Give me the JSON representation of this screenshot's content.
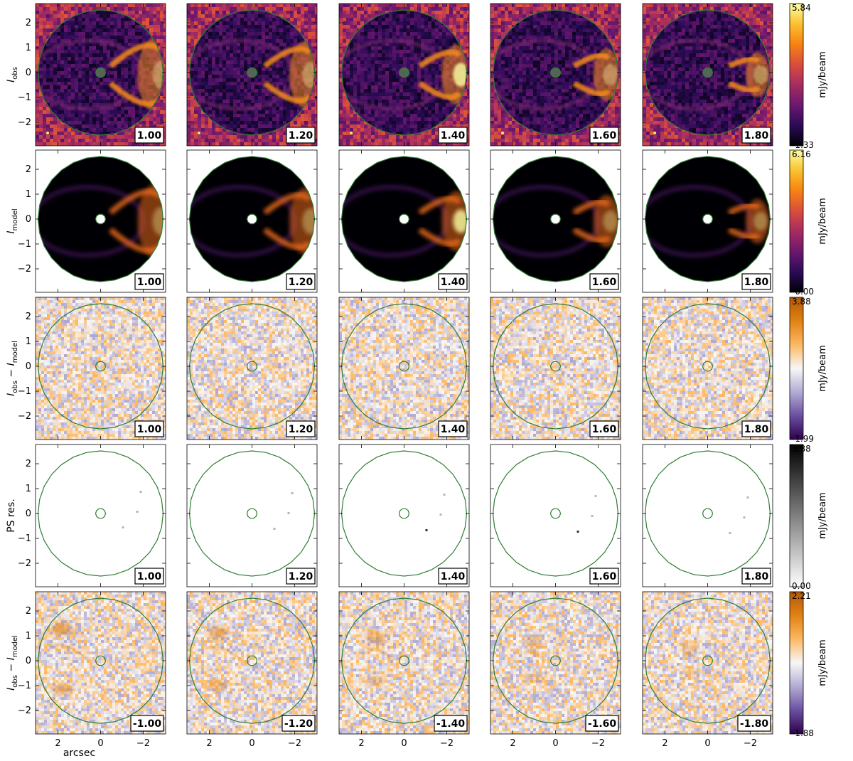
{
  "chart_data": {
    "type": "heatmap",
    "description_rows": 5,
    "columns": [
      "1.00",
      "1.20",
      "1.40",
      "1.60",
      "1.80"
    ],
    "x_axis": {
      "label": "arcsec",
      "ticks": [
        "2",
        "0",
        "−2"
      ],
      "range": [
        2.7,
        -2.7
      ],
      "direction": "reversed"
    },
    "y_axis": {
      "ticks": [
        "2",
        "1",
        "0",
        "−1",
        "−2"
      ],
      "range": [
        -2.7,
        2.7
      ]
    },
    "rows": [
      {
        "ylabel_main": "I",
        "ylabel_sub": "obs",
        "ylabel_tail": "",
        "cmap": "inferno_noisy",
        "cbar_max": "5.84",
        "cbar_min": "-1.33",
        "cbar_unit": "mJy/beam",
        "panel_labels": [
          "1.00",
          "1.20",
          "1.40",
          "1.60",
          "1.80"
        ],
        "beam_marker": true
      },
      {
        "ylabel_main": "I",
        "ylabel_sub": "model",
        "ylabel_tail": "",
        "cmap": "inferno_smooth",
        "cbar_max": "6.16",
        "cbar_min": "-0.00",
        "cbar_unit": "mJy/beam",
        "panel_labels": [
          "1.00",
          "1.20",
          "1.40",
          "1.60",
          "1.80"
        ],
        "beam_marker": false
      },
      {
        "ylabel_main": "I",
        "ylabel_sub": "obs",
        "ylabel_tail": " − I",
        "ylabel_sub2": "model",
        "cmap": "puor_residual",
        "cbar_max": "3.88",
        "cbar_min": "-1.99",
        "cbar_unit": "mJy/beam",
        "panel_labels": [
          "1.00",
          "1.20",
          "1.40",
          "1.60",
          "1.80"
        ],
        "beam_marker": false
      },
      {
        "ylabel_main": "PS res.",
        "ylabel_sub": "",
        "ylabel_tail": "",
        "cmap": "greys_sparse",
        "cbar_max": "3.88",
        "cbar_min": "0.00",
        "cbar_unit": "mJy/beam",
        "panel_labels": [
          "1.00",
          "1.20",
          "1.40",
          "1.60",
          "1.80"
        ],
        "beam_marker": false
      },
      {
        "ylabel_main": "I",
        "ylabel_sub": "obs",
        "ylabel_tail": " − I",
        "ylabel_sub2": "model",
        "cmap": "puor_residual_mirror",
        "cbar_max": "2.21",
        "cbar_min": "-1.88",
        "cbar_unit": "mJy/beam",
        "panel_labels": [
          "-1.00",
          "-1.20",
          "-1.40",
          "-1.60",
          "-1.80"
        ],
        "beam_marker": false
      }
    ],
    "colors": {
      "mask_outline": "#2e7d32",
      "inferno": [
        "#000004",
        "#2b0b57",
        "#6b186e",
        "#a52c60",
        "#d94d3d",
        "#f78311",
        "#fbc12f",
        "#fcffa4"
      ],
      "puor": [
        "#2d004b",
        "#6a4fa0",
        "#b2abd2",
        "#f7f7f7",
        "#fdb863",
        "#e08214",
        "#b35806"
      ],
      "greys": [
        "#ffffff",
        "#000000"
      ]
    }
  }
}
